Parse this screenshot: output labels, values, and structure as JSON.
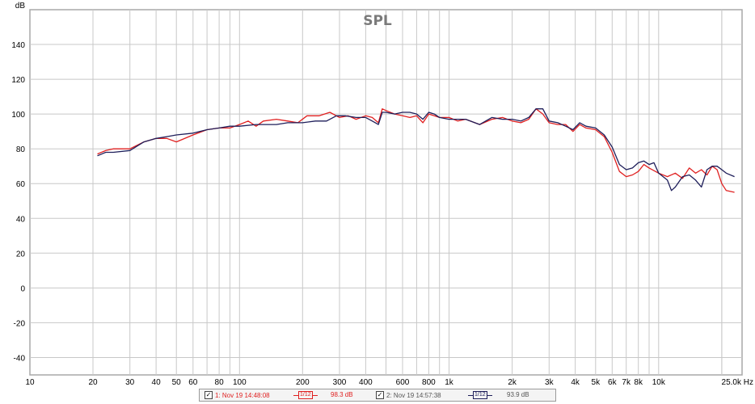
{
  "chart_data": {
    "type": "line",
    "title": "SPL",
    "ylabel": "dB",
    "x_unit": "Hz",
    "x_scale": "log",
    "xlim": [
      10,
      25000
    ],
    "ylim": [
      -50,
      160
    ],
    "y_ticks": [
      -40,
      -20,
      0,
      20,
      40,
      60,
      80,
      100,
      120,
      140
    ],
    "x_ticks": [
      {
        "value": 10,
        "label": "10"
      },
      {
        "value": 20,
        "label": "20"
      },
      {
        "value": 30,
        "label": "30"
      },
      {
        "value": 40,
        "label": "40"
      },
      {
        "value": 50,
        "label": "50"
      },
      {
        "value": 60,
        "label": "60"
      },
      {
        "value": 80,
        "label": "80"
      },
      {
        "value": 100,
        "label": "100"
      },
      {
        "value": 200,
        "label": "200"
      },
      {
        "value": 300,
        "label": "300"
      },
      {
        "value": 400,
        "label": "400"
      },
      {
        "value": 600,
        "label": "600"
      },
      {
        "value": 800,
        "label": "800"
      },
      {
        "value": 1000,
        "label": "1k"
      },
      {
        "value": 2000,
        "label": "2k"
      },
      {
        "value": 3000,
        "label": "3k"
      },
      {
        "value": 4000,
        "label": "4k"
      },
      {
        "value": 5000,
        "label": "5k"
      },
      {
        "value": 6000,
        "label": "6k"
      },
      {
        "value": 7000,
        "label": "7k"
      },
      {
        "value": 8000,
        "label": "8k"
      },
      {
        "value": 10000,
        "label": "10k"
      },
      {
        "value": 25000,
        "label": "25.0k Hz"
      }
    ],
    "grid": true,
    "series": [
      {
        "name": "1: Nov 19 14:48:08",
        "color": "#e02020",
        "level": "98.3 dB",
        "smoothing": "1/12",
        "points": [
          [
            21,
            77
          ],
          [
            23,
            79
          ],
          [
            25,
            80
          ],
          [
            30,
            80
          ],
          [
            35,
            84
          ],
          [
            40,
            86
          ],
          [
            45,
            86
          ],
          [
            50,
            84
          ],
          [
            60,
            88
          ],
          [
            70,
            91
          ],
          [
            80,
            92
          ],
          [
            90,
            92
          ],
          [
            100,
            94
          ],
          [
            110,
            96
          ],
          [
            120,
            93
          ],
          [
            130,
            96
          ],
          [
            150,
            97
          ],
          [
            170,
            96
          ],
          [
            190,
            95
          ],
          [
            210,
            99
          ],
          [
            240,
            99
          ],
          [
            270,
            101
          ],
          [
            300,
            98
          ],
          [
            330,
            99
          ],
          [
            360,
            97
          ],
          [
            400,
            99
          ],
          [
            430,
            98
          ],
          [
            460,
            95
          ],
          [
            480,
            103
          ],
          [
            500,
            102
          ],
          [
            550,
            100
          ],
          [
            600,
            99
          ],
          [
            650,
            98
          ],
          [
            700,
            99
          ],
          [
            750,
            95
          ],
          [
            800,
            100
          ],
          [
            850,
            99
          ],
          [
            900,
            98
          ],
          [
            1000,
            98
          ],
          [
            1100,
            96
          ],
          [
            1200,
            97
          ],
          [
            1400,
            94
          ],
          [
            1600,
            97
          ],
          [
            1800,
            98
          ],
          [
            2000,
            96
          ],
          [
            2200,
            95
          ],
          [
            2400,
            97
          ],
          [
            2600,
            103
          ],
          [
            2800,
            100
          ],
          [
            3000,
            95
          ],
          [
            3300,
            94
          ],
          [
            3600,
            94
          ],
          [
            3900,
            90
          ],
          [
            4200,
            94
          ],
          [
            4500,
            92
          ],
          [
            5000,
            91
          ],
          [
            5500,
            87
          ],
          [
            6000,
            78
          ],
          [
            6500,
            67
          ],
          [
            7000,
            64
          ],
          [
            7500,
            65
          ],
          [
            8000,
            67
          ],
          [
            8500,
            71
          ],
          [
            9000,
            69
          ],
          [
            10000,
            66
          ],
          [
            11000,
            64
          ],
          [
            12000,
            66
          ],
          [
            13000,
            63
          ],
          [
            14000,
            69
          ],
          [
            15000,
            66
          ],
          [
            16000,
            68
          ],
          [
            17000,
            65
          ],
          [
            18000,
            70
          ],
          [
            19000,
            68
          ],
          [
            20000,
            60
          ],
          [
            21000,
            56
          ],
          [
            23000,
            55
          ]
        ]
      },
      {
        "name": "2: Nov 19 14:57:38",
        "color": "#1e1e5a",
        "level": "93.9 dB",
        "smoothing": "1/12",
        "points": [
          [
            21,
            76
          ],
          [
            23,
            78
          ],
          [
            25,
            78
          ],
          [
            30,
            79
          ],
          [
            35,
            84
          ],
          [
            40,
            86
          ],
          [
            45,
            87
          ],
          [
            50,
            88
          ],
          [
            60,
            89
          ],
          [
            70,
            91
          ],
          [
            80,
            92
          ],
          [
            90,
            93
          ],
          [
            100,
            93
          ],
          [
            120,
            94
          ],
          [
            150,
            94
          ],
          [
            170,
            95
          ],
          [
            200,
            95
          ],
          [
            230,
            96
          ],
          [
            260,
            96
          ],
          [
            290,
            99
          ],
          [
            320,
            99
          ],
          [
            360,
            98
          ],
          [
            400,
            98
          ],
          [
            430,
            96
          ],
          [
            460,
            94
          ],
          [
            480,
            101
          ],
          [
            500,
            101
          ],
          [
            550,
            100
          ],
          [
            600,
            101
          ],
          [
            650,
            101
          ],
          [
            700,
            100
          ],
          [
            750,
            97
          ],
          [
            800,
            101
          ],
          [
            850,
            100
          ],
          [
            900,
            98
          ],
          [
            1000,
            97
          ],
          [
            1100,
            97
          ],
          [
            1200,
            97
          ],
          [
            1400,
            94
          ],
          [
            1600,
            98
          ],
          [
            1800,
            97
          ],
          [
            2000,
            97
          ],
          [
            2200,
            96
          ],
          [
            2400,
            98
          ],
          [
            2600,
            103
          ],
          [
            2800,
            103
          ],
          [
            3000,
            96
          ],
          [
            3300,
            95
          ],
          [
            3600,
            93
          ],
          [
            3900,
            91
          ],
          [
            4200,
            95
          ],
          [
            4500,
            93
          ],
          [
            5000,
            92
          ],
          [
            5500,
            88
          ],
          [
            6000,
            81
          ],
          [
            6500,
            71
          ],
          [
            7000,
            68
          ],
          [
            7500,
            69
          ],
          [
            8000,
            72
          ],
          [
            8500,
            73
          ],
          [
            9000,
            71
          ],
          [
            9500,
            72
          ],
          [
            10000,
            66
          ],
          [
            11000,
            62
          ],
          [
            11500,
            56
          ],
          [
            12000,
            58
          ],
          [
            13000,
            64
          ],
          [
            14000,
            65
          ],
          [
            15000,
            62
          ],
          [
            16000,
            58
          ],
          [
            17000,
            68
          ],
          [
            18000,
            70
          ],
          [
            19000,
            70
          ],
          [
            20000,
            68
          ],
          [
            21000,
            66
          ],
          [
            23000,
            64
          ]
        ]
      }
    ]
  }
}
